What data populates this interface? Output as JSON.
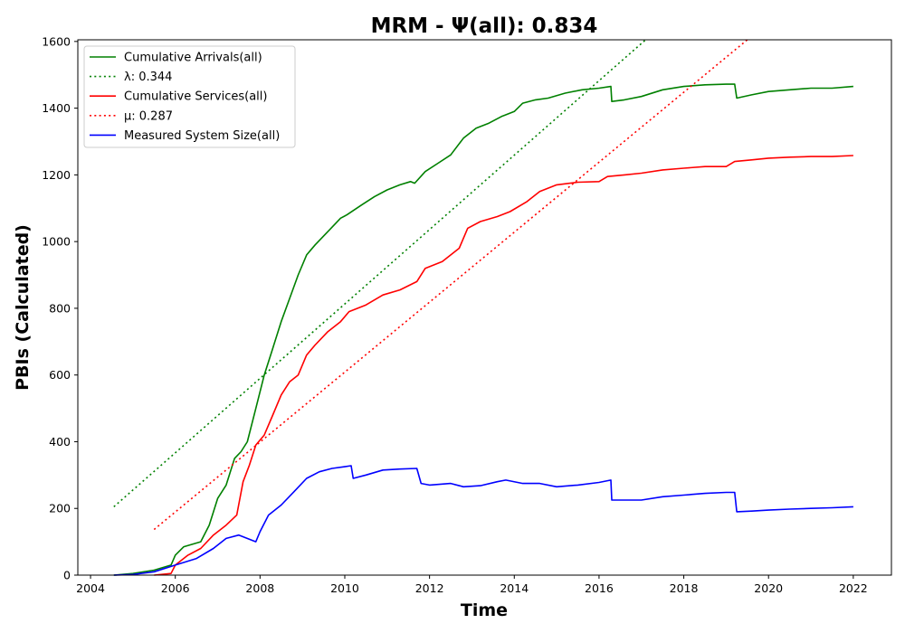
{
  "chart_data": {
    "type": "line",
    "title": "MRM -  Ψ(all): 0.834",
    "xlabel": "Time",
    "ylabel": "PBIs (Calculated)",
    "xlim": [
      2003.7,
      2022.9
    ],
    "ylim": [
      0,
      1605
    ],
    "x_ticks": [
      2004,
      2006,
      2008,
      2010,
      2012,
      2014,
      2016,
      2018,
      2020,
      2022
    ],
    "y_ticks": [
      0,
      200,
      400,
      600,
      800,
      1000,
      1200,
      1400,
      1600
    ],
    "grid": false,
    "legend_position": "top-left",
    "series": [
      {
        "name": "Cumulative Arrivals(all)",
        "legend_label": "Cumulative Arrivals(all)",
        "color": "#008000",
        "style": "solid",
        "x": [
          2004.55,
          2005.0,
          2005.5,
          2005.9,
          2006.0,
          2006.2,
          2006.6,
          2006.8,
          2007.0,
          2007.2,
          2007.4,
          2007.55,
          2007.7,
          2007.9,
          2008.1,
          2008.3,
          2008.5,
          2008.7,
          2008.9,
          2009.1,
          2009.3,
          2009.6,
          2009.9,
          2010.05,
          2010.4,
          2010.7,
          2011.0,
          2011.3,
          2011.55,
          2011.65,
          2011.9,
          2012.2,
          2012.5,
          2012.8,
          2013.1,
          2013.4,
          2013.7,
          2014.0,
          2014.2,
          2014.5,
          2014.8,
          2015.2,
          2015.6,
          2016.0,
          2016.28,
          2016.3,
          2016.6,
          2017.0,
          2017.5,
          2018.0,
          2018.5,
          2019.0,
          2019.2,
          2019.25,
          2019.6,
          2020.0,
          2020.5,
          2021.0,
          2021.5,
          2022.0
        ],
        "y": [
          0,
          5,
          15,
          30,
          60,
          85,
          100,
          150,
          230,
          270,
          350,
          370,
          400,
          500,
          600,
          680,
          760,
          830,
          900,
          960,
          990,
          1030,
          1070,
          1080,
          1110,
          1135,
          1155,
          1170,
          1180,
          1175,
          1210,
          1235,
          1260,
          1310,
          1340,
          1355,
          1375,
          1390,
          1415,
          1425,
          1430,
          1445,
          1455,
          1460,
          1465,
          1420,
          1425,
          1435,
          1455,
          1465,
          1470,
          1472,
          1472,
          1430,
          1440,
          1450,
          1455,
          1460,
          1460,
          1465
        ]
      },
      {
        "name": "λ: 0.344",
        "legend_label": "λ: 0.344",
        "color": "#008000",
        "style": "dotted",
        "x": [
          2004.55,
          2017.1
        ],
        "y": [
          205,
          1605
        ]
      },
      {
        "name": "Cumulative Services(all)",
        "legend_label": "Cumulative Services(all)",
        "color": "#ff0000",
        "style": "solid",
        "x": [
          2005.5,
          2005.9,
          2006.0,
          2006.3,
          2006.6,
          2006.9,
          2007.2,
          2007.45,
          2007.6,
          2007.75,
          2007.9,
          2008.1,
          2008.3,
          2008.5,
          2008.7,
          2008.9,
          2009.1,
          2009.3,
          2009.6,
          2009.9,
          2010.1,
          2010.5,
          2010.9,
          2011.3,
          2011.7,
          2011.9,
          2012.3,
          2012.7,
          2012.9,
          2013.2,
          2013.6,
          2013.9,
          2014.3,
          2014.6,
          2015.0,
          2015.5,
          2016.0,
          2016.2,
          2016.6,
          2017.0,
          2017.5,
          2018.0,
          2018.5,
          2019.0,
          2019.2,
          2019.6,
          2020.0,
          2020.5,
          2021.0,
          2021.5,
          2022.0
        ],
        "y": [
          0,
          5,
          30,
          60,
          80,
          120,
          150,
          180,
          280,
          330,
          390,
          420,
          480,
          540,
          580,
          600,
          660,
          690,
          730,
          760,
          790,
          810,
          840,
          855,
          880,
          920,
          940,
          980,
          1040,
          1060,
          1075,
          1090,
          1120,
          1150,
          1170,
          1178,
          1180,
          1195,
          1200,
          1205,
          1215,
          1220,
          1225,
          1225,
          1240,
          1245,
          1250,
          1253,
          1255,
          1255,
          1258
        ]
      },
      {
        "name": "μ: 0.287",
        "legend_label": "μ: 0.287",
        "color": "#ff0000",
        "style": "dotted",
        "x": [
          2005.5,
          2019.5
        ],
        "y": [
          137,
          1605
        ]
      },
      {
        "name": "Measured System Size(all)",
        "legend_label": "Measured System Size(all)",
        "color": "#0000ff",
        "style": "solid",
        "x": [
          2004.55,
          2005.0,
          2005.5,
          2006.0,
          2006.5,
          2006.9,
          2007.2,
          2007.5,
          2007.9,
          2008.0,
          2008.2,
          2008.5,
          2008.8,
          2009.1,
          2009.4,
          2009.7,
          2010.0,
          2010.15,
          2010.2,
          2010.5,
          2010.9,
          2011.3,
          2011.7,
          2011.8,
          2012.0,
          2012.5,
          2012.8,
          2013.2,
          2013.6,
          2013.8,
          2014.2,
          2014.6,
          2015.0,
          2015.5,
          2016.0,
          2016.28,
          2016.3,
          2016.7,
          2017.0,
          2017.5,
          2018.0,
          2018.5,
          2019.0,
          2019.2,
          2019.25,
          2019.6,
          2020.0,
          2020.5,
          2021.0,
          2021.5,
          2022.0
        ],
        "y": [
          0,
          2,
          10,
          30,
          50,
          80,
          110,
          120,
          100,
          130,
          180,
          210,
          250,
          290,
          310,
          320,
          325,
          328,
          290,
          300,
          315,
          318,
          320,
          275,
          270,
          275,
          265,
          268,
          280,
          285,
          275,
          275,
          265,
          270,
          278,
          285,
          225,
          225,
          225,
          235,
          240,
          245,
          248,
          248,
          190,
          192,
          195,
          198,
          200,
          202,
          205
        ]
      }
    ]
  }
}
